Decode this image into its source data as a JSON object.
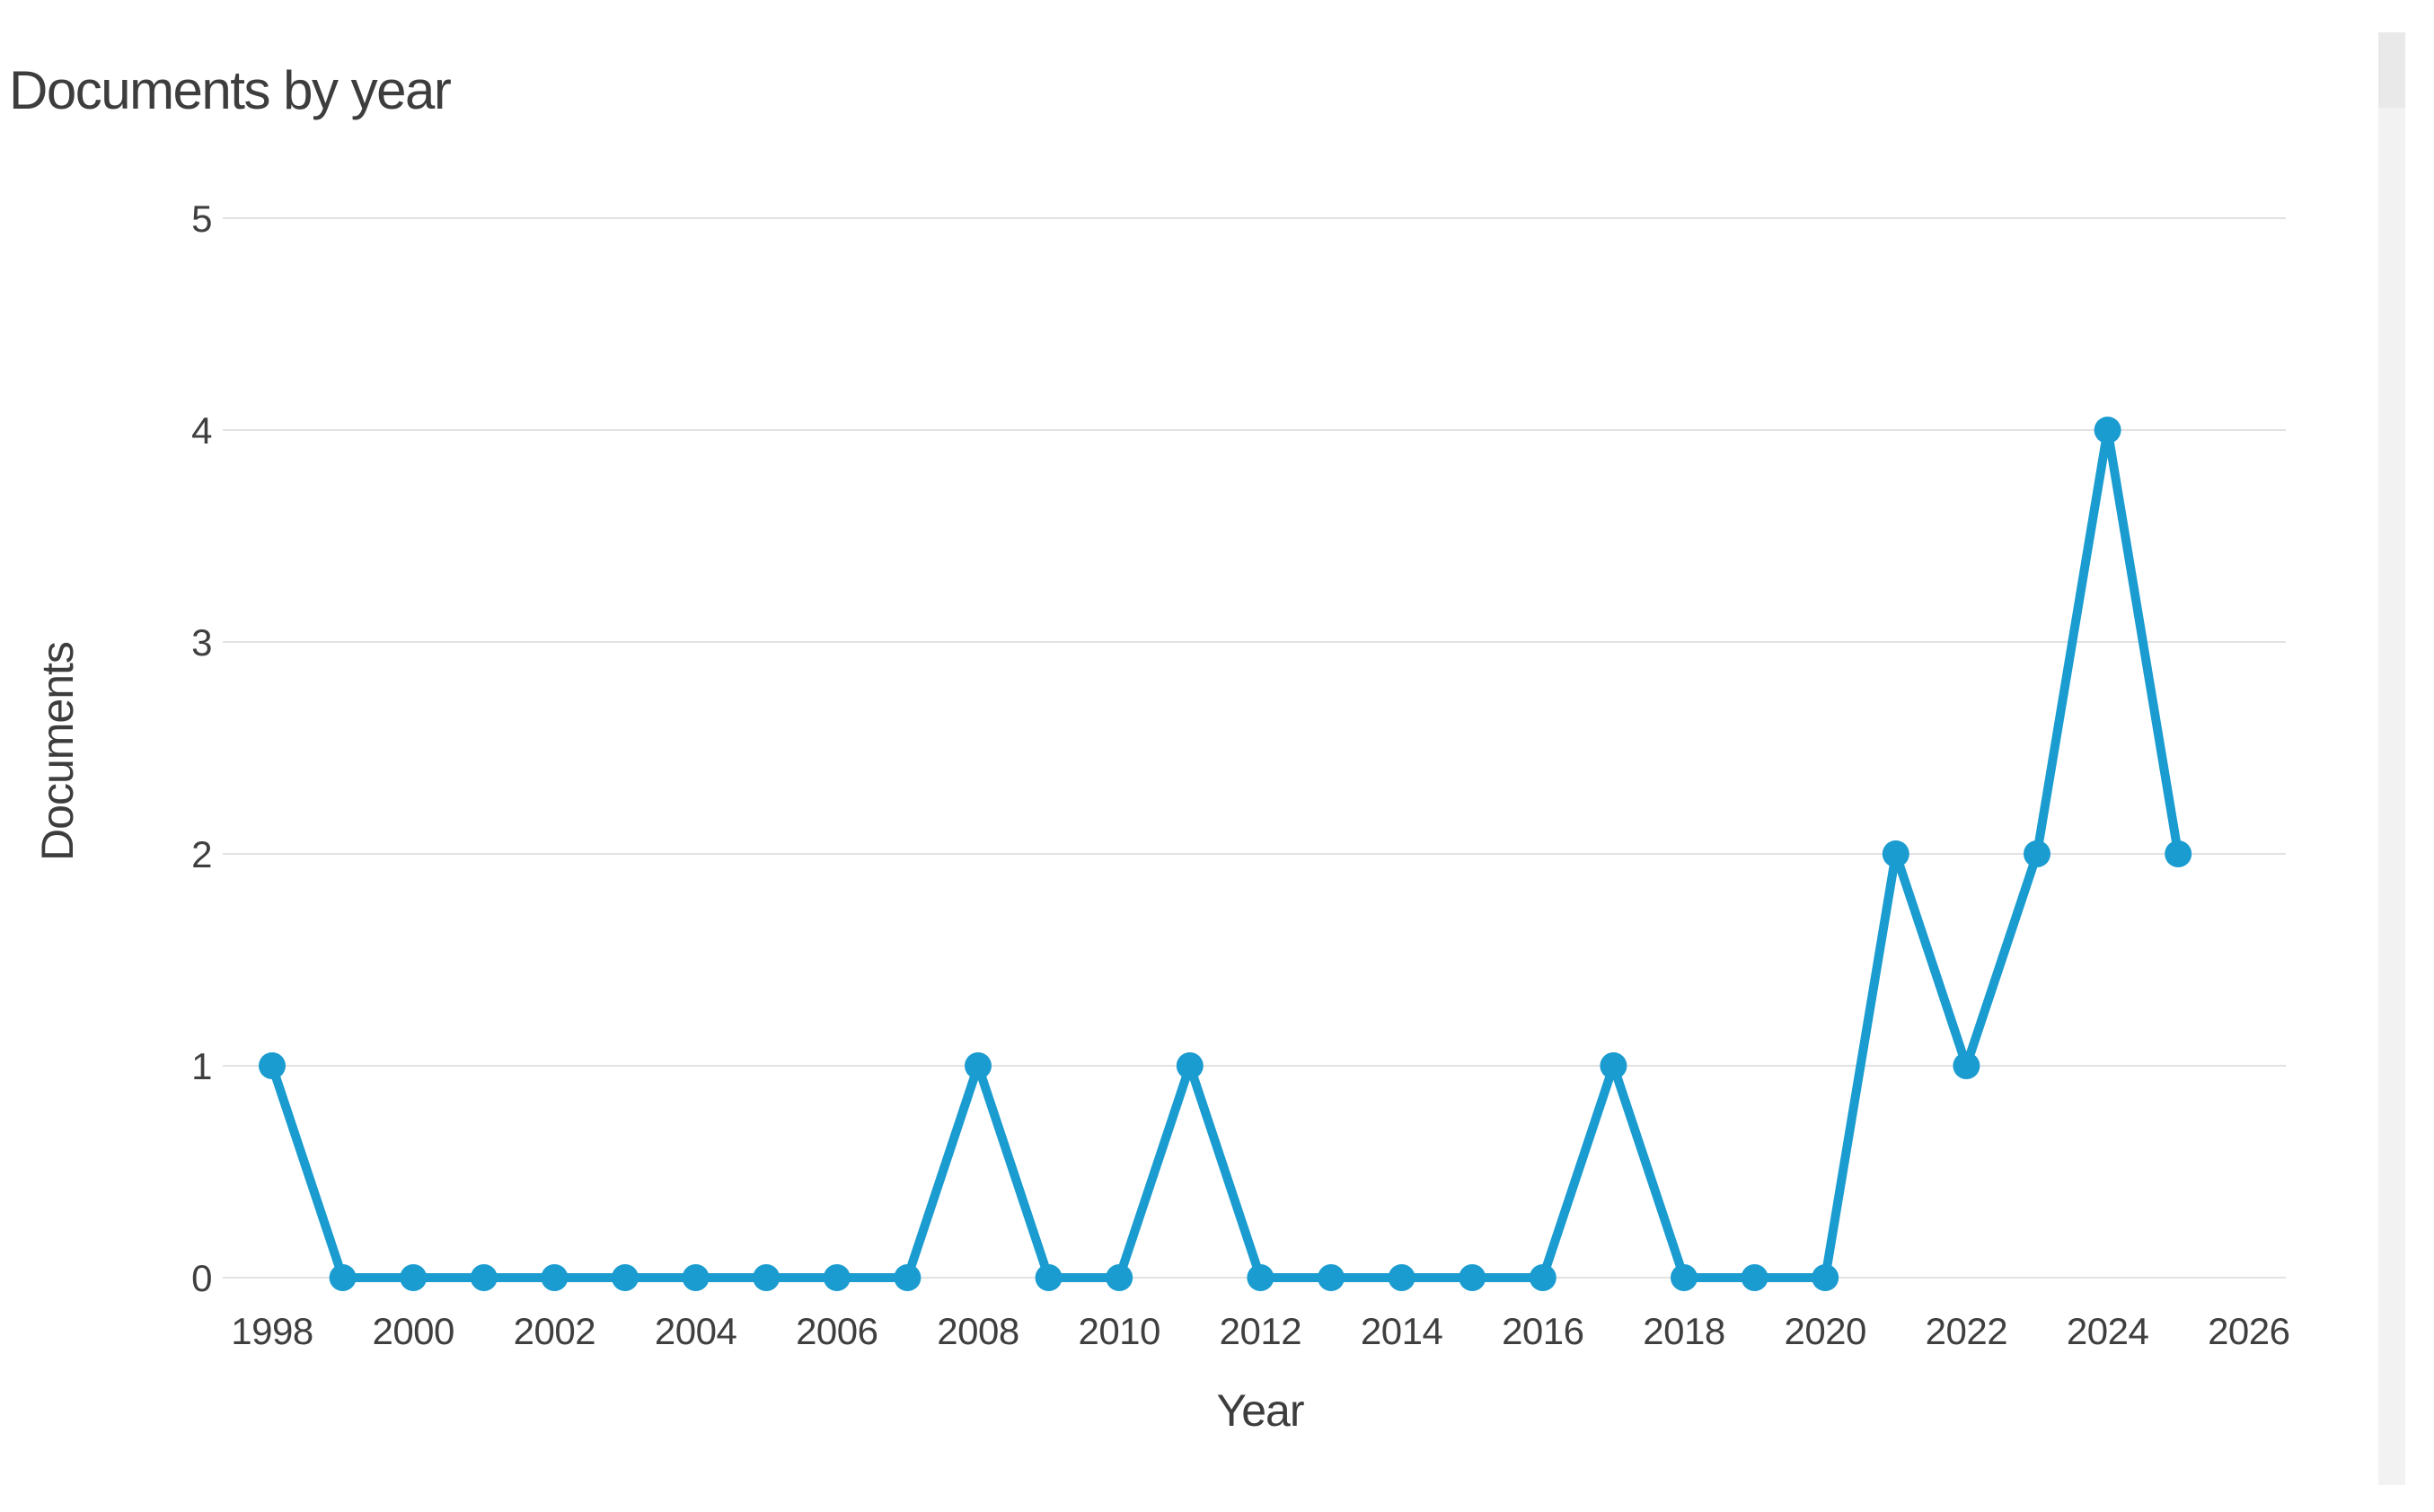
{
  "page": {
    "accent_color": "#1B9CD0",
    "grid_color": "#E2E2E2",
    "title_color": "#3D3D3D",
    "tick_color": "#3F3F3F",
    "scrollbar_color": "#F2F2F2"
  },
  "chart_data": {
    "type": "line",
    "title": "Documents by year",
    "xlabel": "Year",
    "ylabel": "Documents",
    "x": [
      1998,
      1999,
      2000,
      2001,
      2002,
      2003,
      2004,
      2005,
      2006,
      2007,
      2008,
      2009,
      2010,
      2011,
      2012,
      2013,
      2014,
      2015,
      2016,
      2017,
      2018,
      2019,
      2020,
      2021,
      2022,
      2023,
      2024,
      2025
    ],
    "values": [
      1,
      0,
      0,
      0,
      0,
      0,
      0,
      0,
      0,
      0,
      1,
      0,
      0,
      1,
      0,
      0,
      0,
      0,
      0,
      1,
      0,
      0,
      0,
      2,
      1,
      2,
      4,
      2
    ],
    "x_ticks": [
      1998,
      2000,
      2002,
      2004,
      2006,
      2008,
      2010,
      2012,
      2014,
      2016,
      2018,
      2020,
      2022,
      2024,
      2026
    ],
    "y_ticks": [
      0,
      1,
      2,
      3,
      4,
      5
    ],
    "ylim": [
      0,
      5
    ],
    "xlim": [
      1998,
      2026
    ],
    "grid": "horizontal",
    "legend": "none",
    "line_color": "#1B9CD0",
    "marker": "circle"
  }
}
